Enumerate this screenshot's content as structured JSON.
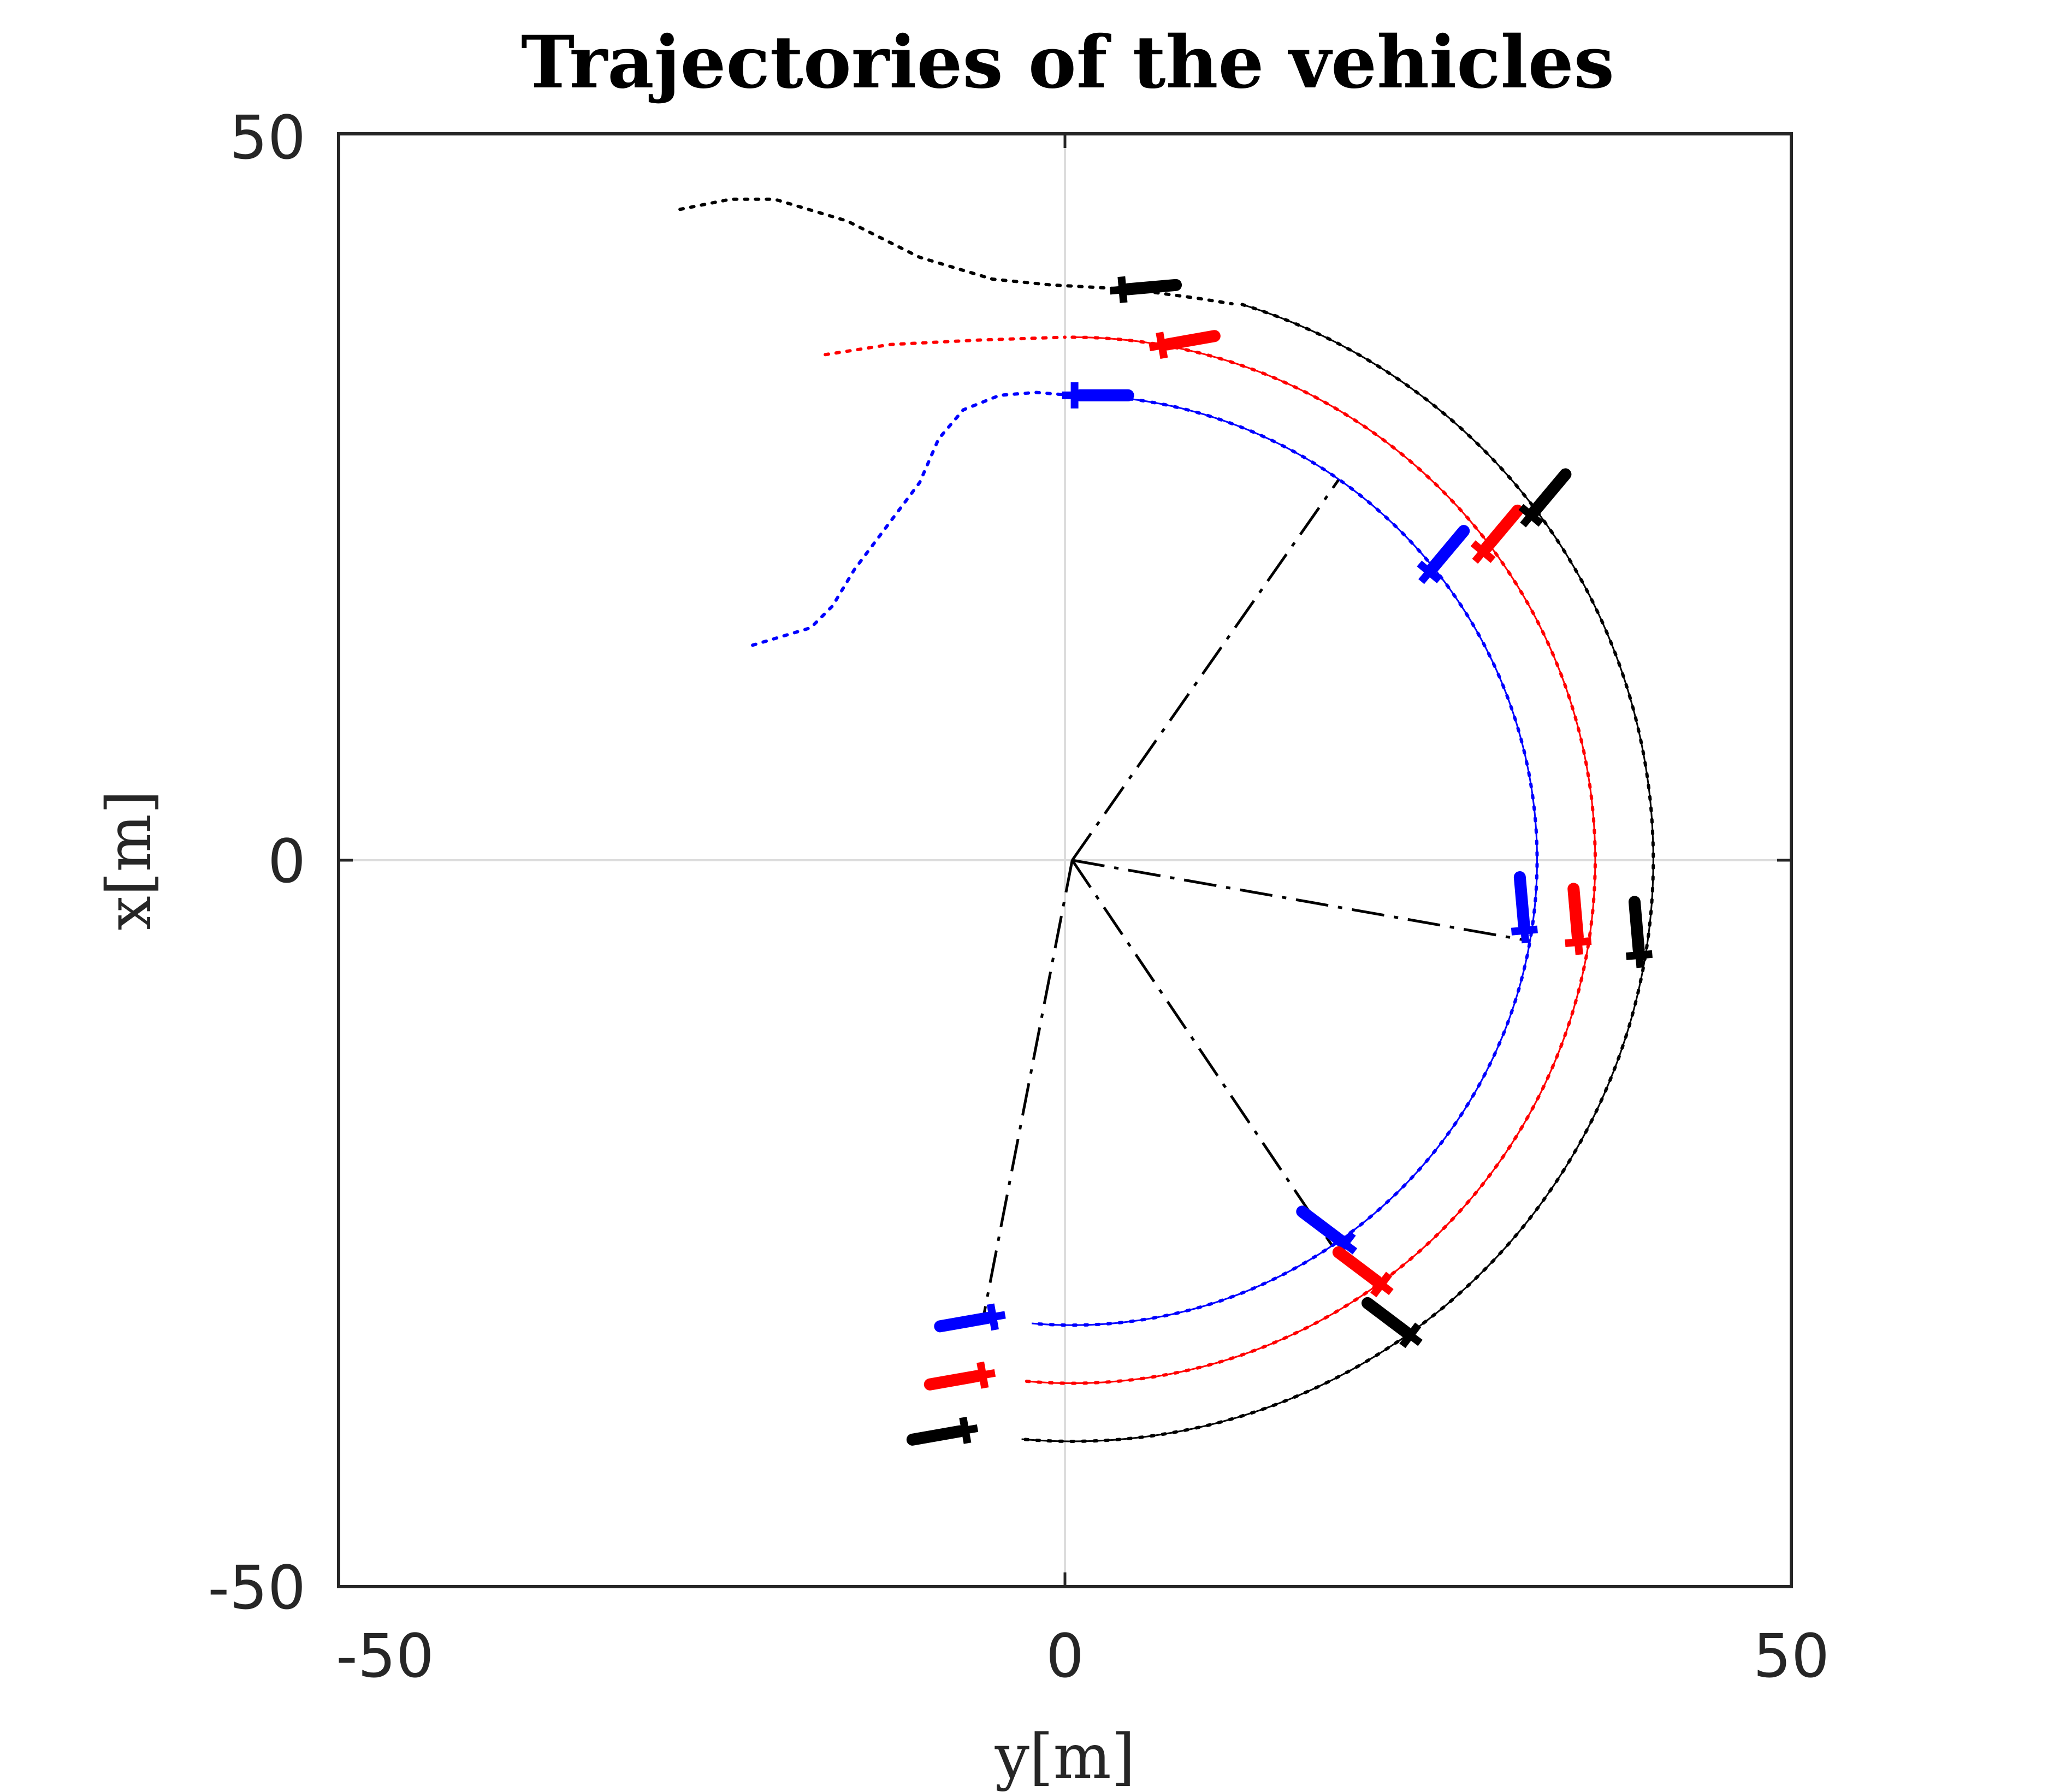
{
  "chart_data": {
    "type": "line",
    "title": "Trajectories of the vehicles",
    "xlabel": "y[m]",
    "ylabel": "x[m]",
    "xlim": [
      -50,
      50
    ],
    "ylim": [
      -50,
      50
    ],
    "xticks": [
      -50,
      0,
      50
    ],
    "yticks": [
      -50,
      0,
      50
    ],
    "xtick_labels": [
      "-50",
      "0",
      "50"
    ],
    "ytick_labels": [
      "-50",
      "0",
      "50"
    ],
    "grid": "zero lines only",
    "legend": "none",
    "colors": {
      "blue": "#0000ff",
      "red": "#ff0000",
      "black": "#000000",
      "grid": "#dcdcdc",
      "axes": "#262626"
    },
    "circle_center": [
      0.5,
      0
    ],
    "series": [
      {
        "color": "#0000ff",
        "radius": 32,
        "path_style": "dotted",
        "approach_path": [
          [
            -21.5,
            14.8
          ],
          [
            -17.5,
            16
          ],
          [
            -16,
            17.5
          ],
          [
            -14.5,
            20
          ],
          [
            -10,
            26
          ],
          [
            -8.7,
            29
          ],
          [
            -7,
            31
          ],
          [
            -4.5,
            32
          ],
          [
            -2,
            32.2
          ],
          [
            0.5,
            32
          ]
        ],
        "circle_arc_deg": [
          90,
          -95
        ],
        "vehicles": [
          [
            1,
            32,
            0
          ],
          [
            25.3,
            20.1,
            50
          ],
          [
            31.6,
            -4.5,
            95
          ],
          [
            19,
            -26.2,
            143
          ],
          [
            -5.3,
            -31.5,
            190
          ]
        ]
      },
      {
        "color": "#ff0000",
        "radius": 36,
        "path_style": "dotted",
        "approach_path": [
          [
            -16.5,
            34.8
          ],
          [
            -12,
            35.5
          ],
          [
            -6,
            35.8
          ],
          [
            0,
            36
          ]
        ],
        "circle_arc_deg": [
          90,
          -95
        ],
        "vehicles": [
          [
            7,
            35.5,
            10
          ],
          [
            29,
            21.5,
            50
          ],
          [
            35.3,
            -5.3,
            95
          ],
          [
            21.5,
            -29,
            143
          ],
          [
            -6,
            -35.5,
            190
          ]
        ]
      },
      {
        "color": "#000000",
        "radius": 40,
        "path_style": "dotted",
        "approach_path": [
          [
            -26.5,
            44.8
          ],
          [
            -23,
            45.5
          ],
          [
            -20,
            45.5
          ],
          [
            -15,
            44
          ],
          [
            -10,
            41.5
          ],
          [
            -5,
            40
          ],
          [
            -1,
            39.6
          ],
          [
            4.5,
            39.3
          ],
          [
            9,
            38.7
          ],
          [
            11.5,
            38.3
          ]
        ],
        "circle_arc_deg": [
          73,
          -95
        ],
        "vehicles": [
          [
            4.3,
            39.3,
            5
          ],
          [
            32.3,
            24,
            50
          ],
          [
            39.5,
            -6.2,
            95
          ],
          [
            23.5,
            -32.5,
            143
          ],
          [
            -7.2,
            -39.3,
            190
          ]
        ]
      }
    ],
    "radial_lines": [
      {
        "style": "dash-dot",
        "angle_deg": 55
      },
      {
        "style": "dash-dot",
        "angle_deg": -10
      },
      {
        "style": "dash-dot",
        "angle_deg": -56
      },
      {
        "style": "dash-dot",
        "angle_deg": -101
      }
    ]
  }
}
